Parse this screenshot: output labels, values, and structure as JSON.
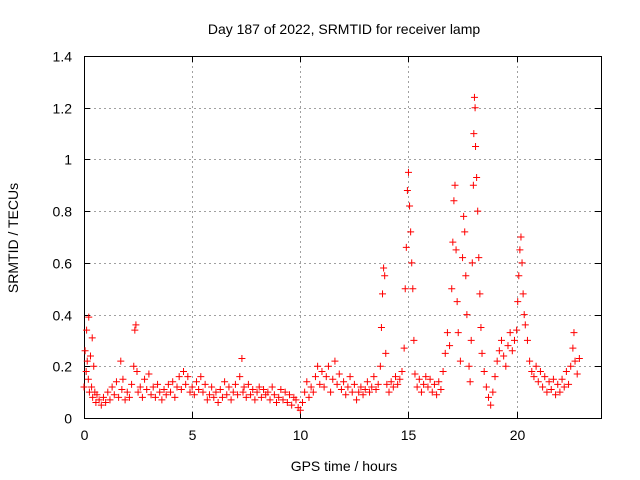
{
  "chart_data": {
    "type": "scatter",
    "title": "Day 187 of 2022, SRMTID for receiver lamp",
    "xlabel": "GPS time / hours",
    "ylabel": "SRMTID / TECUs",
    "xlim": [
      0,
      23.9
    ],
    "ylim": [
      0,
      1.4
    ],
    "xticks": [
      0,
      5,
      10,
      15,
      20
    ],
    "xtick_labels": [
      "0",
      "5",
      "10",
      "15",
      "20"
    ],
    "yticks": [
      0,
      0.2,
      0.4,
      0.6,
      0.8,
      1.0,
      1.2,
      1.4
    ],
    "ytick_labels": [
      "0",
      "0.2",
      "0.4",
      "0.6",
      "0.8",
      "1",
      "1.2",
      "1.4"
    ],
    "grid": true,
    "marker": "+",
    "color": "#ff0000",
    "series": [
      {
        "name": "SRMTID",
        "points": [
          [
            0.0,
            0.12
          ],
          [
            0.05,
            0.26
          ],
          [
            0.1,
            0.18
          ],
          [
            0.12,
            0.34
          ],
          [
            0.15,
            0.22
          ],
          [
            0.2,
            0.15
          ],
          [
            0.22,
            0.39
          ],
          [
            0.25,
            0.1
          ],
          [
            0.3,
            0.24
          ],
          [
            0.35,
            0.12
          ],
          [
            0.38,
            0.31
          ],
          [
            0.4,
            0.08
          ],
          [
            0.45,
            0.2
          ],
          [
            0.5,
            0.1
          ],
          [
            0.55,
            0.06
          ],
          [
            0.6,
            0.09
          ],
          [
            0.7,
            0.07
          ],
          [
            0.8,
            0.05
          ],
          [
            0.9,
            0.08
          ],
          [
            1.0,
            0.06
          ],
          [
            1.1,
            0.1
          ],
          [
            1.2,
            0.07
          ],
          [
            1.3,
            0.12
          ],
          [
            1.4,
            0.09
          ],
          [
            1.5,
            0.14
          ],
          [
            1.6,
            0.08
          ],
          [
            1.7,
            0.22
          ],
          [
            1.75,
            0.11
          ],
          [
            1.8,
            0.15
          ],
          [
            1.9,
            0.07
          ],
          [
            2.0,
            0.1
          ],
          [
            2.1,
            0.08
          ],
          [
            2.2,
            0.13
          ],
          [
            2.3,
            0.2
          ],
          [
            2.35,
            0.34
          ],
          [
            2.4,
            0.36
          ],
          [
            2.45,
            0.18
          ],
          [
            2.5,
            0.1
          ],
          [
            2.6,
            0.12
          ],
          [
            2.7,
            0.08
          ],
          [
            2.8,
            0.15
          ],
          [
            2.9,
            0.11
          ],
          [
            3.0,
            0.17
          ],
          [
            3.1,
            0.09
          ],
          [
            3.2,
            0.12
          ],
          [
            3.3,
            0.08
          ],
          [
            3.4,
            0.13
          ],
          [
            3.5,
            0.1
          ],
          [
            3.6,
            0.07
          ],
          [
            3.7,
            0.11
          ],
          [
            3.8,
            0.09
          ],
          [
            3.9,
            0.13
          ],
          [
            4.0,
            0.1
          ],
          [
            4.1,
            0.14
          ],
          [
            4.2,
            0.08
          ],
          [
            4.3,
            0.12
          ],
          [
            4.4,
            0.16
          ],
          [
            4.5,
            0.11
          ],
          [
            4.6,
            0.18
          ],
          [
            4.7,
            0.13
          ],
          [
            4.8,
            0.16
          ],
          [
            4.9,
            0.1
          ],
          [
            5.0,
            0.12
          ],
          [
            5.1,
            0.09
          ],
          [
            5.2,
            0.14
          ],
          [
            5.3,
            0.11
          ],
          [
            5.4,
            0.16
          ],
          [
            5.5,
            0.1
          ],
          [
            5.6,
            0.13
          ],
          [
            5.7,
            0.07
          ],
          [
            5.8,
            0.09
          ],
          [
            5.9,
            0.12
          ],
          [
            6.0,
            0.08
          ],
          [
            6.1,
            0.1
          ],
          [
            6.2,
            0.06
          ],
          [
            6.3,
            0.11
          ],
          [
            6.4,
            0.08
          ],
          [
            6.5,
            0.14
          ],
          [
            6.6,
            0.09
          ],
          [
            6.7,
            0.12
          ],
          [
            6.8,
            0.07
          ],
          [
            6.9,
            0.1
          ],
          [
            7.0,
            0.13
          ],
          [
            7.1,
            0.09
          ],
          [
            7.2,
            0.16
          ],
          [
            7.3,
            0.23
          ],
          [
            7.35,
            0.1
          ],
          [
            7.4,
            0.12
          ],
          [
            7.5,
            0.08
          ],
          [
            7.6,
            0.13
          ],
          [
            7.7,
            0.09
          ],
          [
            7.8,
            0.11
          ],
          [
            7.9,
            0.07
          ],
          [
            8.0,
            0.1
          ],
          [
            8.1,
            0.12
          ],
          [
            8.2,
            0.08
          ],
          [
            8.3,
            0.11
          ],
          [
            8.4,
            0.09
          ],
          [
            8.5,
            0.1
          ],
          [
            8.6,
            0.07
          ],
          [
            8.7,
            0.12
          ],
          [
            8.8,
            0.09
          ],
          [
            8.9,
            0.06
          ],
          [
            9.0,
            0.08
          ],
          [
            9.1,
            0.11
          ],
          [
            9.2,
            0.07
          ],
          [
            9.3,
            0.1
          ],
          [
            9.4,
            0.06
          ],
          [
            9.5,
            0.09
          ],
          [
            9.6,
            0.05
          ],
          [
            9.7,
            0.08
          ],
          [
            9.8,
            0.07
          ],
          [
            9.9,
            0.04
          ],
          [
            10.0,
            0.03
          ],
          [
            10.1,
            0.06
          ],
          [
            10.2,
            0.1
          ],
          [
            10.3,
            0.14
          ],
          [
            10.4,
            0.08
          ],
          [
            10.5,
            0.12
          ],
          [
            10.6,
            0.1
          ],
          [
            10.7,
            0.16
          ],
          [
            10.8,
            0.2
          ],
          [
            10.9,
            0.13
          ],
          [
            11.0,
            0.18
          ],
          [
            11.1,
            0.12
          ],
          [
            11.2,
            0.16
          ],
          [
            11.3,
            0.2
          ],
          [
            11.4,
            0.1
          ],
          [
            11.5,
            0.15
          ],
          [
            11.6,
            0.22
          ],
          [
            11.7,
            0.13
          ],
          [
            11.8,
            0.17
          ],
          [
            11.9,
            0.11
          ],
          [
            12.0,
            0.14
          ],
          [
            12.1,
            0.09
          ],
          [
            12.2,
            0.12
          ],
          [
            12.3,
            0.16
          ],
          [
            12.4,
            0.1
          ],
          [
            12.5,
            0.13
          ],
          [
            12.6,
            0.07
          ],
          [
            12.7,
            0.1
          ],
          [
            12.8,
            0.12
          ],
          [
            12.9,
            0.09
          ],
          [
            13.0,
            0.11
          ],
          [
            13.1,
            0.14
          ],
          [
            13.2,
            0.1
          ],
          [
            13.3,
            0.12
          ],
          [
            13.4,
            0.16
          ],
          [
            13.5,
            0.11
          ],
          [
            13.6,
            0.13
          ],
          [
            13.7,
            0.2
          ],
          [
            13.75,
            0.35
          ],
          [
            13.8,
            0.48
          ],
          [
            13.85,
            0.58
          ],
          [
            13.9,
            0.55
          ],
          [
            13.95,
            0.25
          ],
          [
            14.0,
            0.13
          ],
          [
            14.1,
            0.1
          ],
          [
            14.2,
            0.14
          ],
          [
            14.3,
            0.12
          ],
          [
            14.4,
            0.16
          ],
          [
            14.5,
            0.13
          ],
          [
            14.6,
            0.15
          ],
          [
            14.7,
            0.18
          ],
          [
            14.8,
            0.27
          ],
          [
            14.85,
            0.5
          ],
          [
            14.9,
            0.66
          ],
          [
            14.95,
            0.88
          ],
          [
            15.0,
            0.95
          ],
          [
            15.05,
            0.82
          ],
          [
            15.1,
            0.72
          ],
          [
            15.15,
            0.6
          ],
          [
            15.2,
            0.5
          ],
          [
            15.25,
            0.3
          ],
          [
            15.3,
            0.17
          ],
          [
            15.4,
            0.12
          ],
          [
            15.5,
            0.15
          ],
          [
            15.6,
            0.1
          ],
          [
            15.7,
            0.13
          ],
          [
            15.8,
            0.16
          ],
          [
            15.9,
            0.12
          ],
          [
            16.0,
            0.15
          ],
          [
            16.1,
            0.1
          ],
          [
            16.2,
            0.13
          ],
          [
            16.3,
            0.09
          ],
          [
            16.4,
            0.14
          ],
          [
            16.5,
            0.11
          ],
          [
            16.6,
            0.18
          ],
          [
            16.7,
            0.25
          ],
          [
            16.8,
            0.33
          ],
          [
            16.9,
            0.28
          ],
          [
            17.0,
            0.5
          ],
          [
            17.05,
            0.68
          ],
          [
            17.1,
            0.84
          ],
          [
            17.15,
            0.9
          ],
          [
            17.2,
            0.65
          ],
          [
            17.25,
            0.45
          ],
          [
            17.3,
            0.33
          ],
          [
            17.4,
            0.22
          ],
          [
            17.5,
            0.62
          ],
          [
            17.55,
            0.78
          ],
          [
            17.6,
            0.72
          ],
          [
            17.65,
            0.55
          ],
          [
            17.7,
            0.4
          ],
          [
            17.8,
            0.2
          ],
          [
            17.85,
            0.14
          ],
          [
            17.9,
            0.3
          ],
          [
            17.95,
            0.6
          ],
          [
            18.0,
            0.9
          ],
          [
            18.02,
            1.1
          ],
          [
            18.05,
            1.24
          ],
          [
            18.08,
            1.2
          ],
          [
            18.1,
            1.05
          ],
          [
            18.15,
            0.93
          ],
          [
            18.2,
            0.8
          ],
          [
            18.25,
            0.62
          ],
          [
            18.3,
            0.48
          ],
          [
            18.35,
            0.35
          ],
          [
            18.4,
            0.25
          ],
          [
            18.5,
            0.18
          ],
          [
            18.6,
            0.12
          ],
          [
            18.7,
            0.08
          ],
          [
            18.8,
            0.05
          ],
          [
            18.9,
            0.1
          ],
          [
            19.0,
            0.16
          ],
          [
            19.1,
            0.22
          ],
          [
            19.2,
            0.26
          ],
          [
            19.3,
            0.3
          ],
          [
            19.4,
            0.24
          ],
          [
            19.5,
            0.2
          ],
          [
            19.6,
            0.28
          ],
          [
            19.7,
            0.33
          ],
          [
            19.8,
            0.26
          ],
          [
            19.9,
            0.3
          ],
          [
            20.0,
            0.34
          ],
          [
            20.05,
            0.45
          ],
          [
            20.1,
            0.55
          ],
          [
            20.15,
            0.65
          ],
          [
            20.2,
            0.7
          ],
          [
            20.25,
            0.6
          ],
          [
            20.3,
            0.48
          ],
          [
            20.35,
            0.4
          ],
          [
            20.4,
            0.36
          ],
          [
            20.5,
            0.3
          ],
          [
            20.6,
            0.22
          ],
          [
            20.7,
            0.18
          ],
          [
            20.8,
            0.16
          ],
          [
            20.9,
            0.2
          ],
          [
            21.0,
            0.14
          ],
          [
            21.1,
            0.18
          ],
          [
            21.2,
            0.12
          ],
          [
            21.3,
            0.16
          ],
          [
            21.4,
            0.1
          ],
          [
            21.5,
            0.14
          ],
          [
            21.6,
            0.11
          ],
          [
            21.7,
            0.15
          ],
          [
            21.8,
            0.09
          ],
          [
            21.9,
            0.13
          ],
          [
            22.0,
            0.1
          ],
          [
            22.1,
            0.15
          ],
          [
            22.2,
            0.12
          ],
          [
            22.3,
            0.18
          ],
          [
            22.4,
            0.13
          ],
          [
            22.5,
            0.2
          ],
          [
            22.6,
            0.27
          ],
          [
            22.65,
            0.33
          ],
          [
            22.7,
            0.22
          ],
          [
            22.8,
            0.17
          ],
          [
            22.9,
            0.23
          ]
        ]
      }
    ]
  }
}
